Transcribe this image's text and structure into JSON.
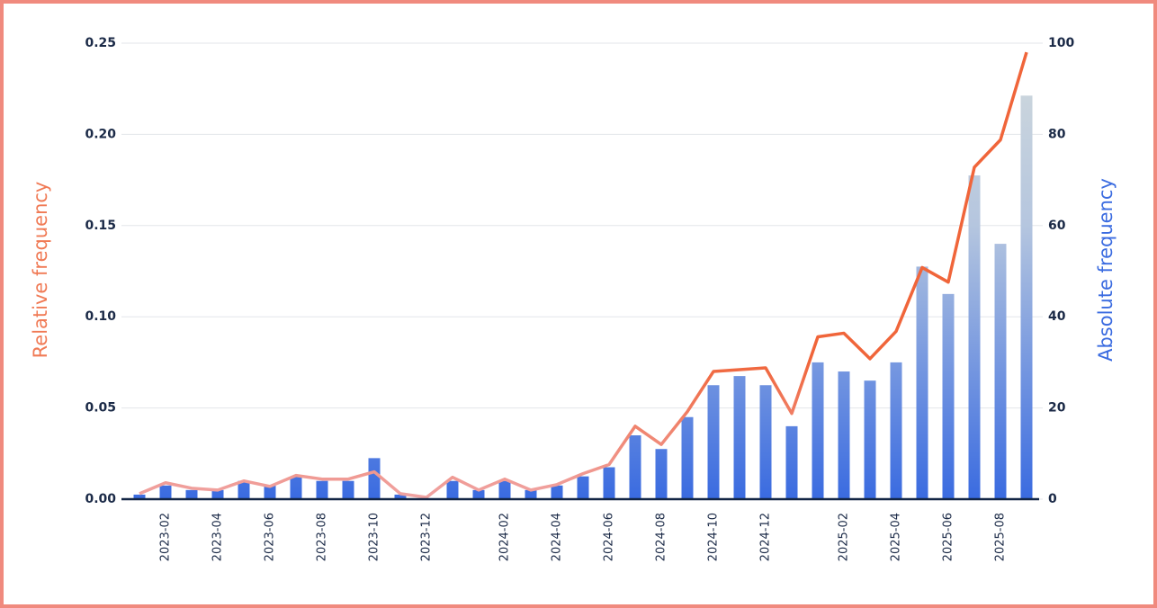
{
  "chart_data": {
    "type": "bar-line",
    "categories": [
      null,
      "2023-02",
      null,
      "2023-04",
      null,
      "2023-06",
      null,
      "2023-08",
      null,
      "2023-10",
      null,
      "2023-12",
      null,
      null,
      "2024-02",
      null,
      "2024-04",
      null,
      "2024-06",
      null,
      "2024-08",
      null,
      "2024-10",
      null,
      "2024-12",
      null,
      null,
      "2025-02",
      null,
      "2025-04",
      null,
      "2025-06",
      null,
      "2025-08",
      null
    ],
    "y_label": "Relative frequency",
    "y2_label": "Absolute frequency",
    "series": [
      {
        "name": "Absolute frequency",
        "type": "bar",
        "axis": "y2",
        "color": "#3a6be0",
        "values": [
          1,
          3,
          2,
          2,
          4,
          3,
          5,
          4,
          4,
          9,
          1,
          0,
          4,
          2,
          4,
          2,
          3,
          5,
          7,
          14,
          11,
          18,
          25,
          27,
          25,
          16,
          30,
          28,
          26,
          30,
          51,
          45,
          71,
          56,
          88.5
        ]
      },
      {
        "name": "Relative frequency",
        "type": "line",
        "color": "#f0653a",
        "values": [
          0.003,
          0.009,
          0.006,
          0.005,
          0.01,
          0.007,
          0.013,
          0.011,
          0.011,
          0.015,
          0.003,
          0.001,
          0.012,
          0.005,
          0.011,
          0.005,
          0.008,
          0.014,
          0.019,
          0.04,
          0.03,
          0.048,
          0.07,
          0.071,
          0.072,
          0.047,
          0.089,
          0.091,
          0.077,
          0.092,
          0.127,
          0.119,
          0.182,
          0.197,
          0.245
        ]
      }
    ],
    "ylim": [
      0,
      0.25
    ],
    "yticks": [
      {
        "value": 0,
        "label": "0.00"
      },
      {
        "value": 0.05,
        "label": "0.05"
      },
      {
        "value": 0.1,
        "label": "0.10"
      },
      {
        "value": 0.15,
        "label": "0.15"
      },
      {
        "value": 0.2,
        "label": "0.20"
      },
      {
        "value": 0.25,
        "label": "0.25"
      }
    ],
    "y2lim": [
      0,
      100
    ],
    "y2ticks": [
      0,
      20,
      40,
      60,
      80,
      100
    ],
    "grid": true
  }
}
